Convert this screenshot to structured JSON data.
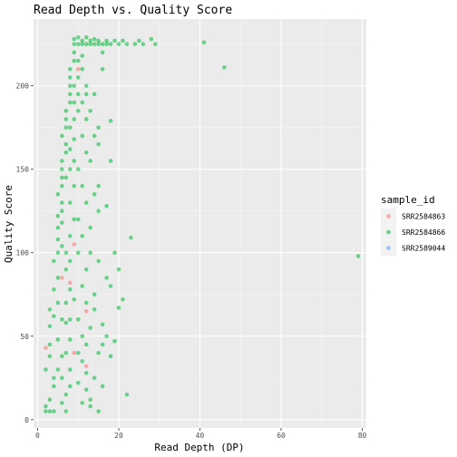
{
  "chart_data": {
    "type": "scatter",
    "title": "Read Depth vs. Quality Score",
    "xlabel": "Read Depth (DP)",
    "ylabel": "Quality Score",
    "xlim": [
      -1,
      81
    ],
    "ylim": [
      -5,
      240
    ],
    "x_ticks": [
      0,
      20,
      40,
      60,
      80
    ],
    "y_ticks": [
      0,
      50,
      100,
      150,
      200
    ],
    "grid": true,
    "legend": {
      "title": "sample_id",
      "placement": "right"
    },
    "series": [
      {
        "name": "SRR2584863",
        "color": "#F8766D",
        "points": [
          [
            2,
            43
          ],
          [
            9,
            105
          ],
          [
            10,
            210
          ],
          [
            12,
            32
          ],
          [
            6,
            85
          ],
          [
            8,
            82
          ],
          [
            12,
            65
          ],
          [
            9,
            40
          ]
        ]
      },
      {
        "name": "SRR2584866",
        "color": "#00BA38",
        "points": [
          [
            2,
            8
          ],
          [
            2,
            5
          ],
          [
            3,
            5
          ],
          [
            4,
            5
          ],
          [
            3,
            12
          ],
          [
            4,
            20
          ],
          [
            2,
            30
          ],
          [
            3,
            38
          ],
          [
            4,
            25
          ],
          [
            6,
            10
          ],
          [
            5,
            30
          ],
          [
            3,
            45
          ],
          [
            5,
            48
          ],
          [
            3,
            56
          ],
          [
            4,
            62
          ],
          [
            6,
            60
          ],
          [
            5,
            70
          ],
          [
            3,
            66
          ],
          [
            4,
            78
          ],
          [
            5,
            85
          ],
          [
            4,
            95
          ],
          [
            5,
            100
          ],
          [
            5,
            108
          ],
          [
            6,
            104
          ],
          [
            5,
            115
          ],
          [
            6,
            118
          ],
          [
            6,
            125
          ],
          [
            5,
            122
          ],
          [
            6,
            130
          ],
          [
            5,
            135
          ],
          [
            6,
            140
          ],
          [
            6,
            145
          ],
          [
            6,
            150
          ],
          [
            6,
            155
          ],
          [
            7,
            160
          ],
          [
            7,
            165
          ],
          [
            6,
            170
          ],
          [
            7,
            175
          ],
          [
            7,
            180
          ],
          [
            7,
            185
          ],
          [
            8,
            190
          ],
          [
            8,
            195
          ],
          [
            8,
            200
          ],
          [
            8,
            205
          ],
          [
            8,
            210
          ],
          [
            9,
            215
          ],
          [
            9,
            220
          ],
          [
            9,
            225
          ],
          [
            10,
            225
          ],
          [
            11,
            225
          ],
          [
            12,
            225
          ],
          [
            13,
            225
          ],
          [
            14,
            225
          ],
          [
            15,
            225
          ],
          [
            16,
            225
          ],
          [
            17,
            225
          ],
          [
            18,
            225
          ],
          [
            20,
            225
          ],
          [
            22,
            225
          ],
          [
            24,
            225
          ],
          [
            26,
            225
          ],
          [
            29,
            225
          ],
          [
            11,
            227
          ],
          [
            13,
            227
          ],
          [
            15,
            227
          ],
          [
            17,
            227
          ],
          [
            19,
            227
          ],
          [
            21,
            227
          ],
          [
            25,
            227
          ],
          [
            7,
            58
          ],
          [
            8,
            48
          ],
          [
            7,
            40
          ],
          [
            8,
            30
          ],
          [
            6,
            38
          ],
          [
            8,
            20
          ],
          [
            7,
            15
          ],
          [
            6,
            25
          ],
          [
            8,
            60
          ],
          [
            7,
            70
          ],
          [
            9,
            72
          ],
          [
            8,
            78
          ],
          [
            7,
            90
          ],
          [
            8,
            95
          ],
          [
            7,
            100
          ],
          [
            8,
            110
          ],
          [
            9,
            120
          ],
          [
            8,
            130
          ],
          [
            9,
            140
          ],
          [
            7,
            145
          ],
          [
            8,
            150
          ],
          [
            9,
            155
          ],
          [
            8,
            162
          ],
          [
            9,
            168
          ],
          [
            8,
            175
          ],
          [
            9,
            180
          ],
          [
            10,
            185
          ],
          [
            9,
            190
          ],
          [
            10,
            195
          ],
          [
            9,
            200
          ],
          [
            10,
            205
          ],
          [
            11,
            210
          ],
          [
            10,
            215
          ],
          [
            11,
            218
          ],
          [
            12,
            200
          ],
          [
            11,
            190
          ],
          [
            12,
            180
          ],
          [
            11,
            170
          ],
          [
            12,
            160
          ],
          [
            10,
            150
          ],
          [
            11,
            140
          ],
          [
            12,
            130
          ],
          [
            10,
            120
          ],
          [
            11,
            110
          ],
          [
            10,
            100
          ],
          [
            12,
            90
          ],
          [
            11,
            80
          ],
          [
            12,
            70
          ],
          [
            10,
            60
          ],
          [
            11,
            50
          ],
          [
            12,
            45
          ],
          [
            10,
            40
          ],
          [
            11,
            35
          ],
          [
            12,
            28
          ],
          [
            10,
            22
          ],
          [
            12,
            18
          ],
          [
            11,
            10
          ],
          [
            13,
            12
          ],
          [
            14,
            25
          ],
          [
            15,
            40
          ],
          [
            13,
            55
          ],
          [
            14,
            75
          ],
          [
            15,
            95
          ],
          [
            13,
            115
          ],
          [
            14,
            135
          ],
          [
            13,
            155
          ],
          [
            15,
            175
          ],
          [
            14,
            195
          ],
          [
            16,
            210
          ],
          [
            17,
            50
          ],
          [
            18,
            38
          ],
          [
            19,
            47
          ],
          [
            16,
            20
          ],
          [
            15,
            5
          ],
          [
            18,
            80
          ],
          [
            17,
            85
          ],
          [
            19,
            100
          ],
          [
            20,
            90
          ],
          [
            21,
            72
          ],
          [
            22,
            15
          ],
          [
            23,
            109
          ],
          [
            16,
            57
          ],
          [
            17,
            128
          ],
          [
            15,
            125
          ],
          [
            18,
            155
          ],
          [
            18,
            179
          ],
          [
            41,
            226
          ],
          [
            46,
            211
          ],
          [
            79,
            98
          ],
          [
            20,
            67
          ],
          [
            9,
            228
          ],
          [
            10,
            229
          ],
          [
            12,
            229
          ],
          [
            14,
            228
          ],
          [
            28,
            228
          ],
          [
            7,
            5
          ],
          [
            13,
            8
          ],
          [
            16,
            45
          ],
          [
            14,
            66
          ],
          [
            13,
            100
          ],
          [
            15,
            140
          ],
          [
            15,
            165
          ],
          [
            14,
            170
          ],
          [
            13,
            185
          ],
          [
            12,
            195
          ],
          [
            16,
            220
          ]
        ]
      },
      {
        "name": "SRR2589044",
        "color": "#619CFF",
        "points": []
      }
    ]
  }
}
